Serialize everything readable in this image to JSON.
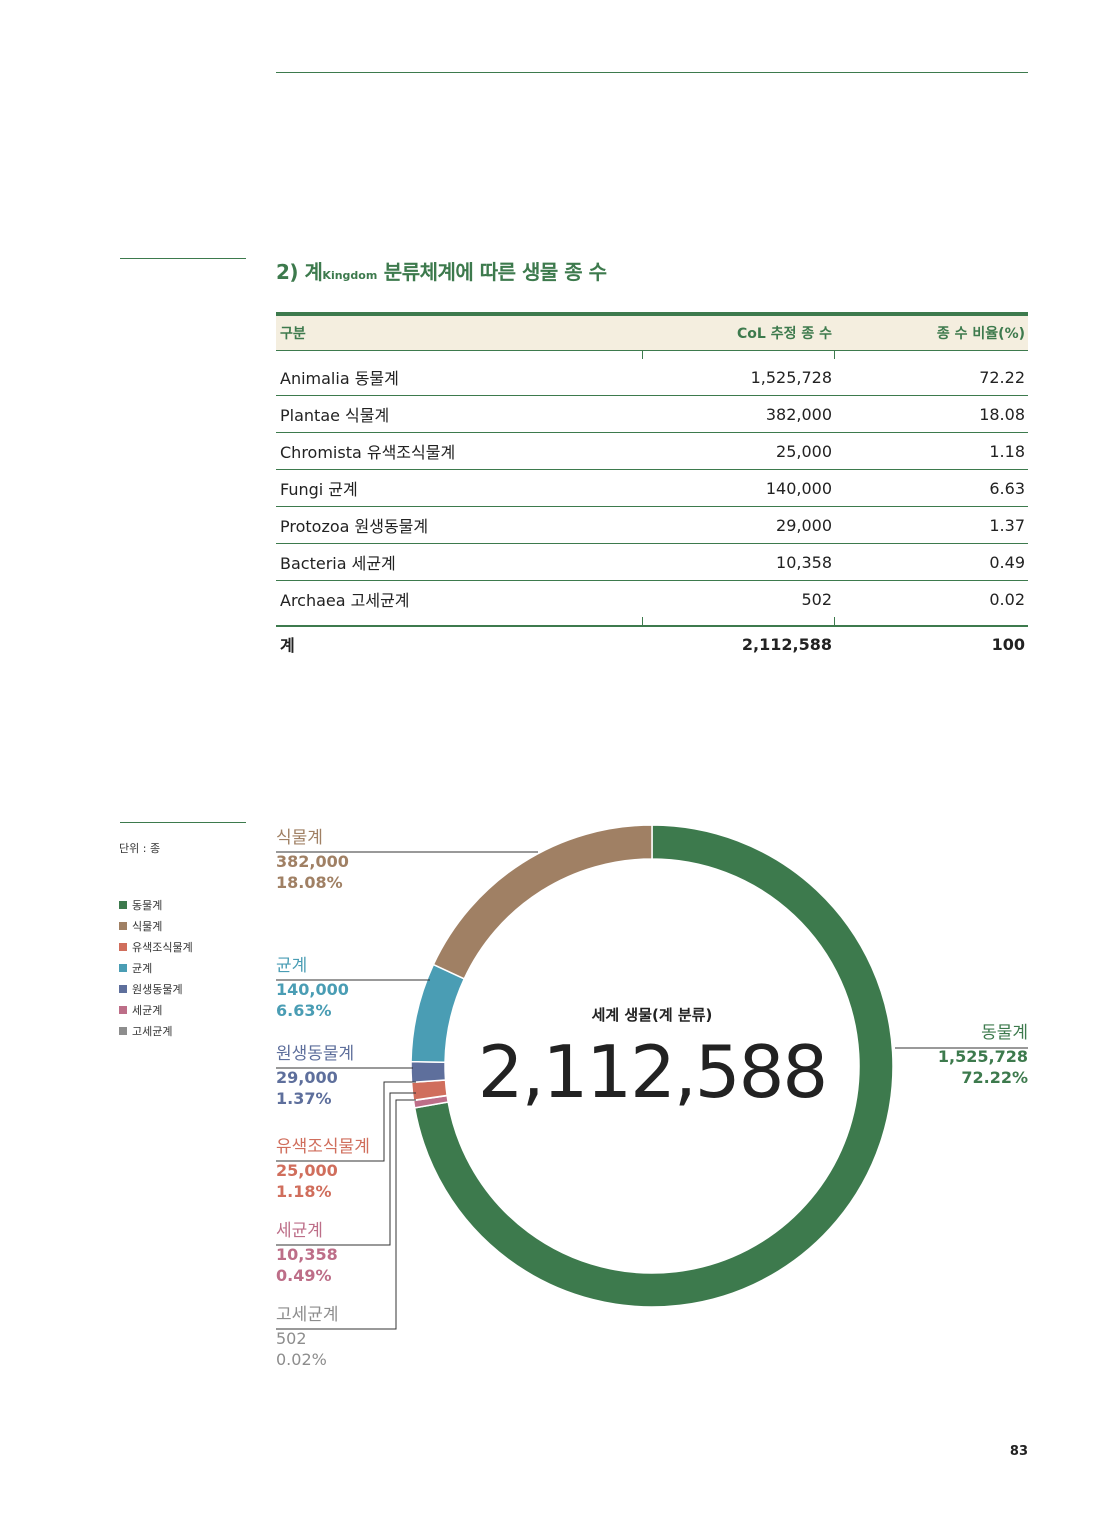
{
  "section_title": {
    "prefix": "2) 계",
    "sub": "Kingdom",
    "suffix": " 분류체계에 따른 생물 종 수"
  },
  "table": {
    "headers": [
      "구분",
      "CoL 추정 종 수",
      "종 수 비율(%)"
    ],
    "rows": [
      {
        "name": "Animalia 동물계",
        "count": "1,525,728",
        "ratio": "72.22"
      },
      {
        "name": "Plantae 식물계",
        "count": "382,000",
        "ratio": "18.08"
      },
      {
        "name": "Chromista 유색조식물계",
        "count": "25,000",
        "ratio": "1.18"
      },
      {
        "name": "Fungi 균계",
        "count": "140,000",
        "ratio": "6.63"
      },
      {
        "name": "Protozoa 원생동물계",
        "count": "29,000",
        "ratio": "1.37"
      },
      {
        "name": "Bacteria 세균계",
        "count": "10,358",
        "ratio": "0.49"
      },
      {
        "name": "Archaea 고세균계",
        "count": "502",
        "ratio": "0.02"
      }
    ],
    "total": {
      "name": "계",
      "count": "2,112,588",
      "ratio": "100"
    }
  },
  "unit_label": "단위 : 종",
  "legend": [
    {
      "label": "동물계",
      "color": "#3d7a4d"
    },
    {
      "label": "식물계",
      "color": "#a08064"
    },
    {
      "label": "유색조식물계",
      "color": "#d06e5c"
    },
    {
      "label": "균계",
      "color": "#4a9db4"
    },
    {
      "label": "원생동물계",
      "color": "#5e6f9c"
    },
    {
      "label": "세균계",
      "color": "#bd6e88"
    },
    {
      "label": "고세균계",
      "color": "#8d8d8d"
    }
  ],
  "chart_data": {
    "type": "pie",
    "variant": "donut",
    "center_caption": "세계 생물(계 분류)",
    "center_total": "2,112,588",
    "slices": [
      {
        "label": "동물계",
        "value": 1525728,
        "value_text": "1,525,728",
        "percent": 72.22,
        "percent_text": "72.22%",
        "color": "#3d7a4d"
      },
      {
        "label": "세균계",
        "value": 10358,
        "value_text": "10,358",
        "percent": 0.49,
        "percent_text": "0.49%",
        "color": "#bd6e88"
      },
      {
        "label": "고세균계",
        "value": 502,
        "value_text": "502",
        "percent": 0.02,
        "percent_text": "0.02%",
        "color": "#8d8d8d"
      },
      {
        "label": "유색조식물계",
        "value": 25000,
        "value_text": "25,000",
        "percent": 1.18,
        "percent_text": "1.18%",
        "color": "#d06e5c"
      },
      {
        "label": "원생동물계",
        "value": 29000,
        "value_text": "29,000",
        "percent": 1.37,
        "percent_text": "1.37%",
        "color": "#5e6f9c"
      },
      {
        "label": "균계",
        "value": 140000,
        "value_text": "140,000",
        "percent": 6.63,
        "percent_text": "6.63%",
        "color": "#4a9db4"
      },
      {
        "label": "식물계",
        "value": 382000,
        "value_text": "382,000",
        "percent": 18.08,
        "percent_text": "18.08%",
        "color": "#a08064"
      }
    ]
  },
  "page_number": "83"
}
